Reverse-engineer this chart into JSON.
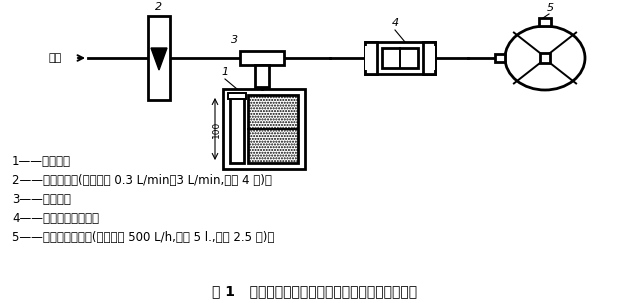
{
  "title": "图 1   呼气阀和吸气阀的逆向漏气量测定装置示意图",
  "title_fontsize": 10,
  "bg_color": "#ffffff",
  "legend_lines": [
    "1——水柱瓶；",
    "2——转子流量计(测量范围 0.3 L/min～3 L/min,精度 4 级)；",
    "3——三通管；",
    "4——呼气阀或吸气阀；",
    "5——湿式气体流量计(额定流量 500 L/h,容量 5 l.,精度 2.5 级)。"
  ],
  "legend_fontsize": 8.5,
  "gas_source_label": "气源",
  "label_1": "1",
  "label_2": "2",
  "label_3": "3",
  "label_4": "4",
  "label_5": "5",
  "water_column_label": "100"
}
